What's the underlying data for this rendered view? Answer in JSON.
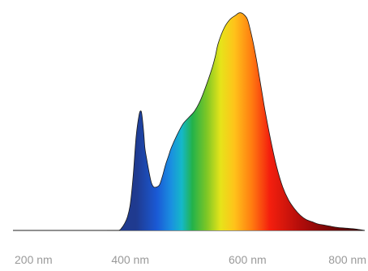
{
  "chart_data": {
    "type": "area",
    "title": "",
    "xlabel": "",
    "ylabel": "",
    "x_unit": "nm",
    "xlim": [
      200,
      800
    ],
    "ylim": [
      0,
      1
    ],
    "x_ticks": [
      200,
      400,
      600,
      800
    ],
    "x_tick_labels": [
      "200 nm",
      "400 nm",
      "600 nm",
      "800 nm"
    ],
    "grid": false,
    "legend": "none",
    "fill": "visible-spectrum-gradient",
    "series": [
      {
        "x": [
          360,
          380,
          385,
          390,
          395,
          400,
          405,
          410,
          415,
          418,
          420,
          423,
          425,
          428,
          432,
          436,
          440,
          445,
          450,
          455,
          460,
          465,
          470,
          480,
          490,
          500,
          510,
          520,
          530,
          540,
          545,
          550,
          560,
          570,
          580,
          585,
          590,
          595,
          600,
          605,
          610,
          615,
          620,
          625,
          630,
          640,
          650,
          660,
          670,
          680,
          690,
          700,
          710,
          720,
          730,
          740,
          750,
          760,
          770,
          780,
          790,
          800
        ],
        "y": [
          0,
          0,
          0.01,
          0.03,
          0.06,
          0.12,
          0.25,
          0.43,
          0.53,
          0.55,
          0.53,
          0.45,
          0.38,
          0.33,
          0.27,
          0.22,
          0.2,
          0.2,
          0.21,
          0.25,
          0.3,
          0.34,
          0.38,
          0.44,
          0.49,
          0.52,
          0.55,
          0.6,
          0.67,
          0.75,
          0.8,
          0.86,
          0.93,
          0.97,
          0.99,
          1.0,
          1.0,
          0.99,
          0.97,
          0.92,
          0.86,
          0.79,
          0.71,
          0.63,
          0.55,
          0.41,
          0.29,
          0.2,
          0.14,
          0.1,
          0.07,
          0.05,
          0.04,
          0.03,
          0.025,
          0.02,
          0.015,
          0.012,
          0.01,
          0.008,
          0.004,
          0
        ]
      }
    ]
  }
}
